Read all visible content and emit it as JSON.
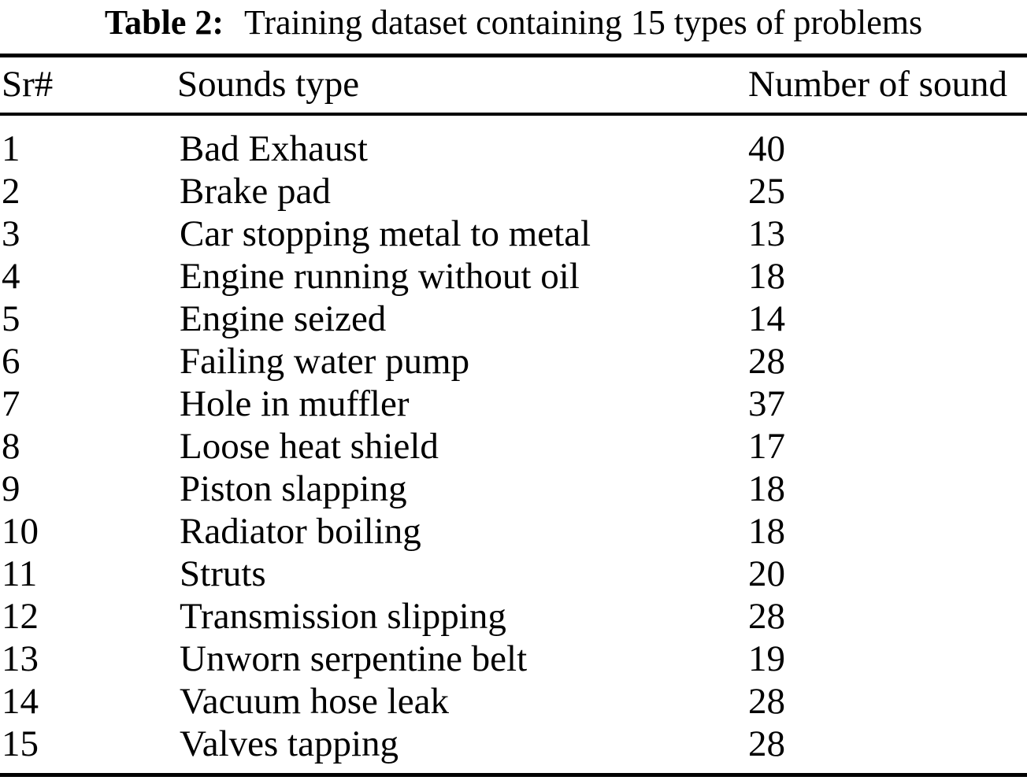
{
  "caption": {
    "label": "Table 2:",
    "text": "Training dataset containing 15 types of problems"
  },
  "table": {
    "headers": {
      "sr": "Sr#",
      "sound": "Sounds type",
      "count": "Number of sound"
    },
    "rows": [
      {
        "sr": "1",
        "sound": "Bad Exhaust",
        "count": "40"
      },
      {
        "sr": "2",
        "sound": "Brake pad",
        "count": "25"
      },
      {
        "sr": "3",
        "sound": "Car stopping metal to metal",
        "count": "13"
      },
      {
        "sr": "4",
        "sound": "Engine running without oil",
        "count": "18"
      },
      {
        "sr": "5",
        "sound": "Engine seized",
        "count": "14"
      },
      {
        "sr": "6",
        "sound": "Failing water pump",
        "count": "28"
      },
      {
        "sr": "7",
        "sound": "Hole in muffler",
        "count": "37"
      },
      {
        "sr": "8",
        "sound": "Loose heat shield",
        "count": "17"
      },
      {
        "sr": "9",
        "sound": "Piston slapping",
        "count": "18"
      },
      {
        "sr": "10",
        "sound": "Radiator boiling",
        "count": "18"
      },
      {
        "sr": "11",
        "sound": "Struts",
        "count": "20"
      },
      {
        "sr": "12",
        "sound": "Transmission slipping",
        "count": "28"
      },
      {
        "sr": "13",
        "sound": "Unworn serpentine belt",
        "count": "19"
      },
      {
        "sr": "14",
        "sound": "Vacuum hose leak",
        "count": "28"
      },
      {
        "sr": "15",
        "sound": "Valves tapping",
        "count": "28"
      }
    ]
  },
  "colors": {
    "text": "#000000",
    "background": "#ffffff",
    "rule": "#000000"
  }
}
